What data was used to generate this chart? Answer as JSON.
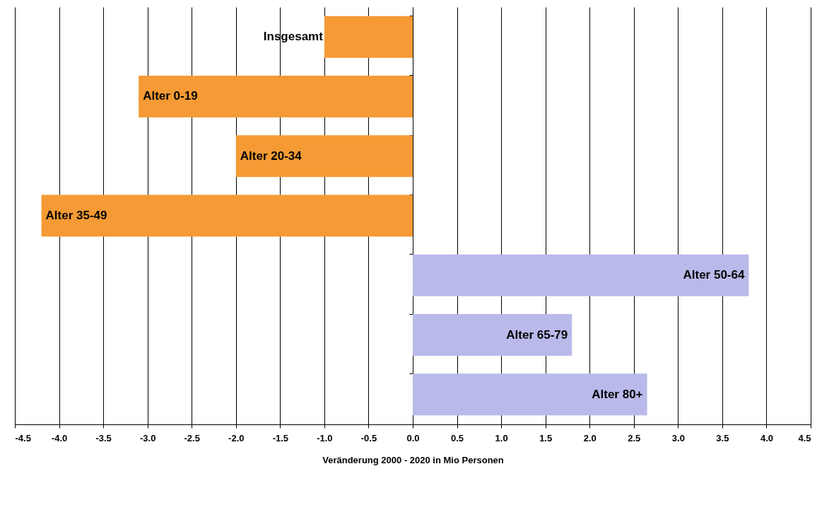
{
  "chart_data": {
    "type": "bar",
    "orientation": "horizontal",
    "xlabel": "Veränderung 2000 - 2020 in Mio Personen",
    "categories": [
      "Insgesamt",
      "Alter 0-19",
      "Alter 20-34",
      "Alter 35-49",
      "Alter 50-64",
      "Alter 65-79",
      "Alter 80+"
    ],
    "values": [
      -1.0,
      -3.1,
      -2.0,
      -4.2,
      3.8,
      1.8,
      2.65
    ],
    "colors": [
      "#f59a34",
      "#f59a34",
      "#f59a34",
      "#f59a34",
      "#b9b9ea",
      "#b9b9ea",
      "#b9b9ea"
    ],
    "xlim": [
      -4.5,
      4.5
    ],
    "xticks": [
      {
        "value": -4.5,
        "label": "-4.5"
      },
      {
        "value": -4,
        "label": "-4.0"
      },
      {
        "value": -3.5,
        "label": "-3.5"
      },
      {
        "value": -3,
        "label": "-3.0"
      },
      {
        "value": -2.5,
        "label": "-2.5"
      },
      {
        "value": -2,
        "label": "-2.0"
      },
      {
        "value": -1.5,
        "label": "-1.5"
      },
      {
        "value": -1,
        "label": "-1.0"
      },
      {
        "value": -0.5,
        "label": "-0.5"
      },
      {
        "value": 0,
        "label": "0.0"
      },
      {
        "value": 0.5,
        "label": "0.5"
      },
      {
        "value": 1,
        "label": "1.0"
      },
      {
        "value": 1.5,
        "label": "1.5"
      },
      {
        "value": 2,
        "label": "2.0"
      },
      {
        "value": 2.5,
        "label": "2.5"
      },
      {
        "value": 3,
        "label": "3.0"
      },
      {
        "value": 3.5,
        "label": "3.5"
      },
      {
        "value": 4,
        "label": "4.0"
      },
      {
        "value": 4.5,
        "label": "4.5"
      }
    ],
    "grid": "x",
    "tick_labels": "x"
  }
}
